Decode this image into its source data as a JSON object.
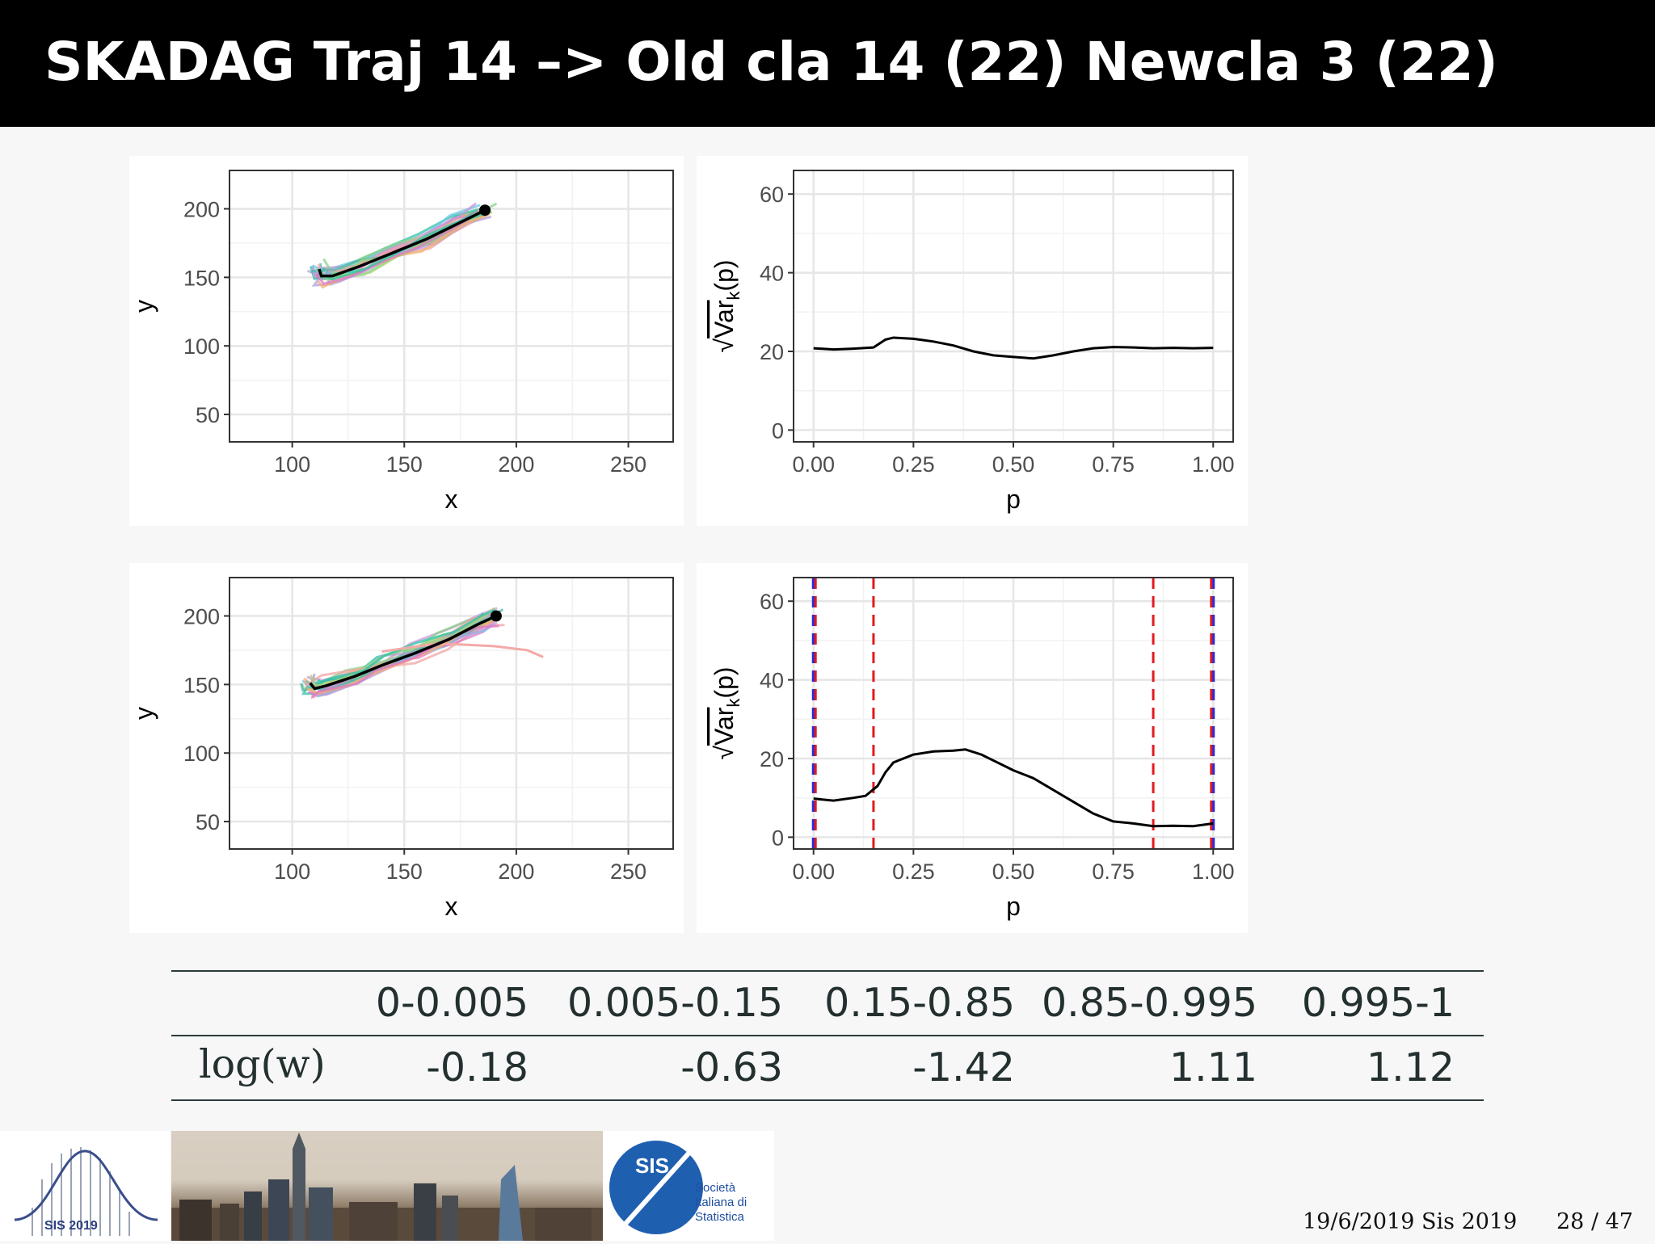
{
  "slide": {
    "title": "SKADAG Traj 14 –> Old cla 14 (22) Newcla 3 (22)"
  },
  "plots": {
    "traj_top": {
      "xlabel": "x",
      "ylabel": "y",
      "xlim": [
        72,
        270
      ],
      "ylim": [
        30,
        228
      ],
      "xticks": [
        "100",
        "150",
        "200",
        "250"
      ],
      "xtick_values": [
        100,
        150,
        200,
        250
      ],
      "yticks": [
        "50",
        "100",
        "150",
        "200"
      ],
      "ytick_values": [
        50,
        100,
        150,
        200
      ],
      "mean_trajectory": [
        [
          112,
          156
        ],
        [
          113,
          151
        ],
        [
          118,
          151
        ],
        [
          130,
          158
        ],
        [
          145,
          168
        ],
        [
          160,
          178
        ],
        [
          175,
          190
        ],
        [
          186,
          199
        ]
      ],
      "end_point": [
        186,
        199
      ]
    },
    "var_top": {
      "xlabel": "p",
      "ylabel": "√Var_k(p)",
      "ylabel_parts": {
        "radical": "√",
        "main": "Var",
        "sub": "k",
        "paren": "(p)"
      },
      "xlim": [
        -0.05,
        1.05
      ],
      "ylim": [
        -3,
        66
      ],
      "xticks": [
        "0.00",
        "0.25",
        "0.50",
        "0.75",
        "1.00"
      ],
      "xtick_values": [
        0,
        0.25,
        0.5,
        0.75,
        1
      ],
      "yticks": [
        "0",
        "20",
        "40",
        "60"
      ],
      "ytick_values": [
        0,
        20,
        40,
        60
      ],
      "curve": [
        [
          0,
          20.8
        ],
        [
          0.05,
          20.5
        ],
        [
          0.1,
          20.7
        ],
        [
          0.15,
          21
        ],
        [
          0.18,
          23
        ],
        [
          0.2,
          23.5
        ],
        [
          0.25,
          23.2
        ],
        [
          0.3,
          22.5
        ],
        [
          0.35,
          21.5
        ],
        [
          0.4,
          20
        ],
        [
          0.45,
          19
        ],
        [
          0.5,
          18.6
        ],
        [
          0.55,
          18.2
        ],
        [
          0.6,
          19
        ],
        [
          0.65,
          20
        ],
        [
          0.7,
          20.8
        ],
        [
          0.75,
          21.1
        ],
        [
          0.8,
          21
        ],
        [
          0.85,
          20.8
        ],
        [
          0.9,
          20.9
        ],
        [
          0.95,
          20.8
        ],
        [
          1,
          20.9
        ]
      ]
    },
    "traj_bottom": {
      "xlabel": "x",
      "ylabel": "y",
      "xlim": [
        72,
        270
      ],
      "ylim": [
        30,
        228
      ],
      "xticks": [
        "100",
        "150",
        "200",
        "250"
      ],
      "xtick_values": [
        100,
        150,
        200,
        250
      ],
      "yticks": [
        "50",
        "100",
        "150",
        "200"
      ],
      "ytick_values": [
        50,
        100,
        150,
        200
      ],
      "mean_trajectory": [
        [
          108,
          151
        ],
        [
          110,
          147
        ],
        [
          115,
          149
        ],
        [
          128,
          156
        ],
        [
          140,
          164
        ],
        [
          155,
          173
        ],
        [
          170,
          183
        ],
        [
          183,
          194
        ],
        [
          191,
          200
        ]
      ],
      "end_point": [
        191,
        200
      ]
    },
    "var_bottom": {
      "xlabel": "p",
      "ylabel": "√Var_k(p)",
      "ylabel_parts": {
        "radical": "√",
        "main": "Var",
        "sub": "k",
        "paren": "(p)"
      },
      "xlim": [
        -0.05,
        1.05
      ],
      "ylim": [
        -3,
        66
      ],
      "xticks": [
        "0.00",
        "0.25",
        "0.50",
        "0.75",
        "1.00"
      ],
      "xtick_values": [
        0,
        0.25,
        0.5,
        0.75,
        1
      ],
      "yticks": [
        "0",
        "20",
        "40",
        "60"
      ],
      "ytick_values": [
        0,
        20,
        40,
        60
      ],
      "curve": [
        [
          0,
          9.8
        ],
        [
          0.05,
          9.3
        ],
        [
          0.1,
          10
        ],
        [
          0.13,
          10.5
        ],
        [
          0.16,
          13
        ],
        [
          0.18,
          16.5
        ],
        [
          0.2,
          19
        ],
        [
          0.25,
          21
        ],
        [
          0.3,
          21.8
        ],
        [
          0.35,
          22
        ],
        [
          0.38,
          22.3
        ],
        [
          0.42,
          21
        ],
        [
          0.5,
          17
        ],
        [
          0.55,
          15
        ],
        [
          0.6,
          12
        ],
        [
          0.65,
          9
        ],
        [
          0.7,
          6
        ],
        [
          0.75,
          4
        ],
        [
          0.8,
          3.5
        ],
        [
          0.85,
          2.8
        ],
        [
          0.9,
          2.9
        ],
        [
          0.95,
          2.8
        ],
        [
          1,
          3.5
        ]
      ],
      "red_lines": [
        0.005,
        0.15,
        0.85,
        0.995
      ],
      "blue_lines": [
        0,
        1
      ]
    }
  },
  "table": {
    "headers": [
      "",
      "0-0.005",
      "0.005-0.15",
      "0.15-0.85",
      "0.85-0.995",
      "0.995-1"
    ],
    "row_label": "log(w)",
    "row_values": [
      "-0.18",
      "-0.63",
      "-1.42",
      "1.11",
      "1.12"
    ]
  },
  "footer": {
    "date_text": "19/6/2019 Sis 2019",
    "page_text": "28 / 47",
    "sis2019_logo_text": "SIS 2019",
    "sis_logo_letters": "SIS",
    "sis_org_name": [
      "Società",
      "Italiana di",
      "Statistica"
    ]
  },
  "colors": {
    "header_bg": "#000000",
    "red_line": "#e41a1c",
    "blue_line": "#2b2bd9",
    "sis_blue": "#1f5fb0"
  }
}
